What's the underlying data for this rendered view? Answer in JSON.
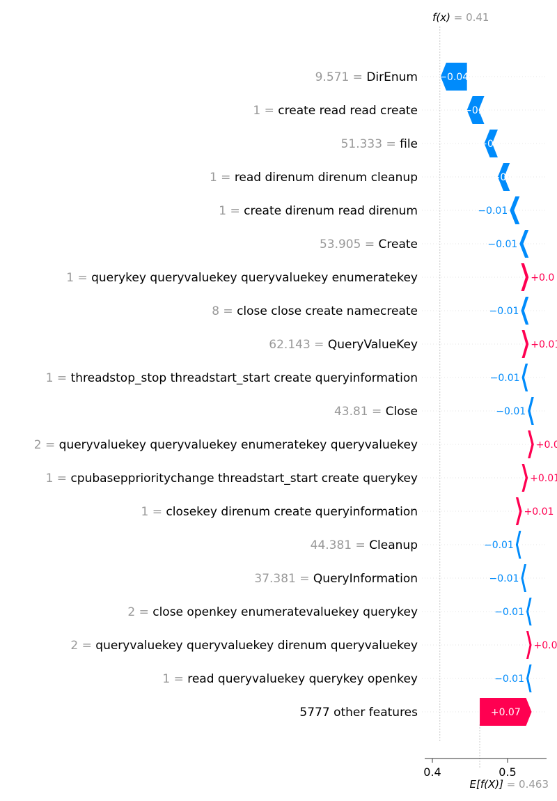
{
  "chart_data": {
    "type": "waterfall",
    "fx_label": "f(x)",
    "fx_value": "0.41",
    "ex_label": "E[f(X)]",
    "ex_value": "0.463",
    "expected_value": 0.463,
    "output_value": 0.41,
    "x_ticks": [
      {
        "value": 0.4,
        "label": "0.4"
      },
      {
        "value": 0.5,
        "label": "0.5"
      }
    ],
    "features": [
      {
        "value": "9.571",
        "name": "DirEnum",
        "contribution": -0.035,
        "label": "−0.04"
      },
      {
        "value": "1",
        "name": "create read read create",
        "contribution": -0.023,
        "label": "−0.0"
      },
      {
        "value": "51.333",
        "name": "file",
        "contribution": -0.018,
        "label": "−0.0"
      },
      {
        "value": "1",
        "name": "read direnum direnum cleanup",
        "contribution": -0.016,
        "label": "−0.0"
      },
      {
        "value": "1",
        "name": "create direnum read direnum",
        "contribution": -0.013,
        "label": "−0.01"
      },
      {
        "value": "53.905",
        "name": "Create",
        "contribution": -0.012,
        "label": "−0.01"
      },
      {
        "value": "1",
        "name": "querykey queryvaluekey queryvaluekey enumeratekey",
        "contribution": 0.01,
        "label": "+0.0"
      },
      {
        "value": "8",
        "name": "close close create namecreate",
        "contribution": -0.01,
        "label": "−0.01"
      },
      {
        "value": "62.143",
        "name": "QueryValueKey",
        "contribution": 0.009,
        "label": "+0.01"
      },
      {
        "value": "1",
        "name": "threadstop_stop threadstart_start create queryinformation",
        "contribution": -0.008,
        "label": "−0.01"
      },
      {
        "value": "43.81",
        "name": "Close",
        "contribution": -0.008,
        "label": "−0.01"
      },
      {
        "value": "2",
        "name": "queryvaluekey queryvaluekey enumeratekey queryvaluekey",
        "contribution": 0.008,
        "label": "+0.0"
      },
      {
        "value": "1",
        "name": "cpubasepprioritychange threadstart_start create querykey",
        "contribution": 0.008,
        "label": "+0.01"
      },
      {
        "value": "1",
        "name": "closekey direnum create queryinformation",
        "contribution": 0.008,
        "label": "+0.01"
      },
      {
        "value": "44.381",
        "name": "Cleanup",
        "contribution": -0.007,
        "label": "−0.01"
      },
      {
        "value": "37.381",
        "name": "QueryInformation",
        "contribution": -0.007,
        "label": "−0.01"
      },
      {
        "value": "2",
        "name": "close openkey enumeratevaluekey querykey",
        "contribution": -0.007,
        "label": "−0.01"
      },
      {
        "value": "2",
        "name": "queryvaluekey queryvaluekey direnum queryvaluekey",
        "contribution": 0.007,
        "label": "+0.0"
      },
      {
        "value": "1",
        "name": "read queryvaluekey querykey openkey",
        "contribution": -0.007,
        "label": "−0.01"
      },
      {
        "value": "",
        "name": "5777 other features",
        "contribution": 0.069,
        "label": "+0.07"
      }
    ],
    "colors": {
      "negative": "#008bfb",
      "positive": "#ff0051",
      "value_text": "#999999",
      "grid": "#cccccc"
    }
  }
}
